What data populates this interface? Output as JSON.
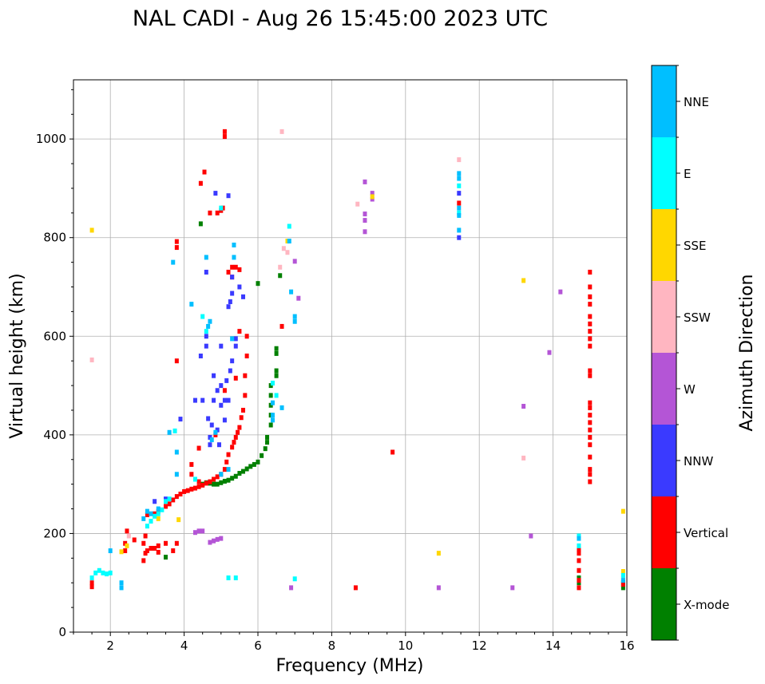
{
  "chart_data": {
    "type": "scatter",
    "title": "NAL CADI - Aug 26 15:45:00 2023 UTC",
    "xlabel": "Frequency (MHz)",
    "ylabel": "Virtual height (km)",
    "xlim": [
      1,
      16
    ],
    "ylim": [
      0,
      1120
    ],
    "xticks": [
      2,
      4,
      6,
      8,
      10,
      12,
      14,
      16
    ],
    "yticks": [
      0,
      200,
      400,
      600,
      800,
      1000
    ],
    "grid": true,
    "colorbar": {
      "label": "Azimuth Direction",
      "entries": [
        {
          "name": "X-mode",
          "color": "#008000"
        },
        {
          "name": "Vertical",
          "color": "#ff0000"
        },
        {
          "name": "NNW",
          "color": "#3a3aff"
        },
        {
          "name": "W",
          "color": "#b455d6"
        },
        {
          "name": "SSW",
          "color": "#ffb6c1"
        },
        {
          "name": "SSE",
          "color": "#ffd700"
        },
        {
          "name": "E",
          "color": "#00ffff"
        },
        {
          "name": "NNE",
          "color": "#00bfff"
        }
      ]
    },
    "series": [
      {
        "name": "X-mode",
        "points": [
          [
            4.5,
            300
          ],
          [
            4.6,
            303
          ],
          [
            4.7,
            302
          ],
          [
            4.8,
            300
          ],
          [
            4.9,
            300
          ],
          [
            5.0,
            303
          ],
          [
            5.1,
            306
          ],
          [
            5.2,
            308
          ],
          [
            5.3,
            312
          ],
          [
            5.4,
            316
          ],
          [
            5.5,
            322
          ],
          [
            5.6,
            326
          ],
          [
            5.7,
            331
          ],
          [
            5.8,
            336
          ],
          [
            5.9,
            340
          ],
          [
            6.0,
            345
          ],
          [
            6.1,
            358
          ],
          [
            6.2,
            372
          ],
          [
            6.25,
            385
          ],
          [
            6.25,
            395
          ],
          [
            6.35,
            420
          ],
          [
            6.35,
            440
          ],
          [
            6.35,
            460
          ],
          [
            6.35,
            480
          ],
          [
            6.35,
            500
          ],
          [
            6.5,
            520
          ],
          [
            6.5,
            530
          ],
          [
            6.5,
            565
          ],
          [
            6.5,
            575
          ],
          [
            6.6,
            723
          ],
          [
            4.45,
            828
          ],
          [
            6.0,
            707
          ],
          [
            14.7,
            100
          ],
          [
            14.7,
            110
          ],
          [
            15.9,
            90
          ],
          [
            15.9,
            100
          ],
          [
            3.5,
            152
          ]
        ]
      },
      {
        "name": "Vertical",
        "points": [
          [
            1.5,
            92
          ],
          [
            1.5,
            100
          ],
          [
            2.4,
            165
          ],
          [
            2.4,
            180
          ],
          [
            2.45,
            205
          ],
          [
            2.65,
            187
          ],
          [
            2.9,
            145
          ],
          [
            2.95,
            160
          ],
          [
            3.0,
            165
          ],
          [
            3.1,
            170
          ],
          [
            3.2,
            170
          ],
          [
            3.3,
            175
          ],
          [
            3.5,
            180
          ],
          [
            3.7,
            165
          ],
          [
            3.8,
            180
          ],
          [
            2.9,
            180
          ],
          [
            2.95,
            195
          ],
          [
            3.0,
            238
          ],
          [
            3.2,
            240
          ],
          [
            3.3,
            245
          ],
          [
            3.5,
            255
          ],
          [
            3.6,
            260
          ],
          [
            3.7,
            268
          ],
          [
            3.8,
            275
          ],
          [
            3.9,
            280
          ],
          [
            4.0,
            285
          ],
          [
            4.1,
            287
          ],
          [
            4.2,
            290
          ],
          [
            4.3,
            292
          ],
          [
            4.4,
            295
          ],
          [
            4.5,
            298
          ],
          [
            4.6,
            302
          ],
          [
            4.7,
            305
          ],
          [
            4.8,
            310
          ],
          [
            4.9,
            315
          ],
          [
            5.0,
            320
          ],
          [
            5.1,
            330
          ],
          [
            5.15,
            345
          ],
          [
            5.2,
            360
          ],
          [
            5.3,
            375
          ],
          [
            5.35,
            385
          ],
          [
            5.4,
            395
          ],
          [
            5.45,
            405
          ],
          [
            5.5,
            415
          ],
          [
            5.55,
            435
          ],
          [
            5.6,
            450
          ],
          [
            5.65,
            480
          ],
          [
            5.65,
            520
          ],
          [
            5.7,
            560
          ],
          [
            5.7,
            600
          ],
          [
            3.3,
            162
          ],
          [
            3.8,
            550
          ],
          [
            3.8,
            780
          ],
          [
            3.8,
            792
          ],
          [
            4.2,
            340
          ],
          [
            4.2,
            320
          ],
          [
            4.4,
            373
          ],
          [
            4.4,
            305
          ],
          [
            4.45,
            910
          ],
          [
            4.55,
            933
          ],
          [
            4.7,
            850
          ],
          [
            4.9,
            850
          ],
          [
            5.0,
            855
          ],
          [
            5.05,
            860
          ],
          [
            5.1,
            1005
          ],
          [
            5.1,
            1015
          ],
          [
            5.2,
            730
          ],
          [
            5.3,
            720
          ],
          [
            5.3,
            740
          ],
          [
            5.4,
            740
          ],
          [
            5.5,
            735
          ],
          [
            5.5,
            610
          ],
          [
            6.65,
            620
          ],
          [
            9.65,
            365
          ],
          [
            8.65,
            90
          ],
          [
            4.85,
            400
          ],
          [
            5.4,
            515
          ],
          [
            5.1,
            490
          ],
          [
            15.0,
            305
          ],
          [
            15.0,
            320
          ],
          [
            15.0,
            330
          ],
          [
            15.0,
            355
          ],
          [
            15.0,
            380
          ],
          [
            15.0,
            395
          ],
          [
            15.0,
            410
          ],
          [
            15.0,
            425
          ],
          [
            15.0,
            440
          ],
          [
            15.0,
            455
          ],
          [
            15.0,
            465
          ],
          [
            15.0,
            520
          ],
          [
            15.0,
            530
          ],
          [
            15.0,
            580
          ],
          [
            15.0,
            595
          ],
          [
            15.0,
            610
          ],
          [
            15.0,
            625
          ],
          [
            15.0,
            640
          ],
          [
            15.0,
            665
          ],
          [
            15.0,
            680
          ],
          [
            15.0,
            700
          ],
          [
            15.0,
            730
          ],
          [
            14.7,
            90
          ],
          [
            14.7,
            105
          ],
          [
            14.7,
            125
          ],
          [
            14.7,
            145
          ],
          [
            14.7,
            160
          ],
          [
            14.7,
            168
          ],
          [
            15.9,
            97
          ],
          [
            11.45,
            870
          ]
        ]
      },
      {
        "name": "NNW",
        "points": [
          [
            3.2,
            265
          ],
          [
            3.5,
            270
          ],
          [
            4.5,
            470
          ],
          [
            4.6,
            580
          ],
          [
            4.6,
            600
          ],
          [
            4.65,
            433
          ],
          [
            4.7,
            380
          ],
          [
            4.7,
            395
          ],
          [
            4.75,
            420
          ],
          [
            4.8,
            520
          ],
          [
            4.8,
            470
          ],
          [
            4.9,
            410
          ],
          [
            4.95,
            380
          ],
          [
            5.0,
            460
          ],
          [
            5.0,
            500
          ],
          [
            5.1,
            430
          ],
          [
            5.1,
            470
          ],
          [
            5.15,
            510
          ],
          [
            5.2,
            470
          ],
          [
            5.25,
            530
          ],
          [
            5.3,
            550
          ],
          [
            5.4,
            580
          ],
          [
            5.4,
            595
          ],
          [
            5.2,
            660
          ],
          [
            5.25,
            670
          ],
          [
            5.3,
            687
          ],
          [
            5.3,
            720
          ],
          [
            5.5,
            700
          ],
          [
            5.6,
            680
          ],
          [
            4.3,
            470
          ],
          [
            4.45,
            560
          ],
          [
            3.9,
            432
          ],
          [
            4.85,
            890
          ],
          [
            4.6,
            730
          ],
          [
            11.45,
            800
          ],
          [
            11.45,
            890
          ],
          [
            5.0,
            580
          ],
          [
            5.2,
            885
          ],
          [
            4.9,
            490
          ]
        ]
      },
      {
        "name": "W",
        "points": [
          [
            4.3,
            202
          ],
          [
            4.4,
            205
          ],
          [
            4.5,
            205
          ],
          [
            4.7,
            182
          ],
          [
            4.8,
            185
          ],
          [
            4.9,
            188
          ],
          [
            5.0,
            190
          ],
          [
            8.9,
            913
          ],
          [
            8.9,
            848
          ],
          [
            8.9,
            835
          ],
          [
            8.9,
            812
          ],
          [
            9.1,
            878
          ],
          [
            9.1,
            890
          ],
          [
            12.9,
            90
          ],
          [
            13.2,
            458
          ],
          [
            13.4,
            195
          ],
          [
            13.9,
            567
          ],
          [
            14.2,
            690
          ],
          [
            10.9,
            90
          ],
          [
            6.9,
            90
          ],
          [
            7.0,
            752
          ],
          [
            7.1,
            677
          ]
        ]
      },
      {
        "name": "SSW",
        "points": [
          [
            1.5,
            552
          ],
          [
            6.65,
            1015
          ],
          [
            6.7,
            778
          ],
          [
            6.6,
            740
          ],
          [
            6.8,
            770
          ],
          [
            8.7,
            868
          ],
          [
            13.2,
            353
          ],
          [
            15.9,
            110
          ],
          [
            11.45,
            958
          ],
          [
            2.5,
            195
          ]
        ]
      },
      {
        "name": "SSE",
        "points": [
          [
            1.5,
            815
          ],
          [
            3.3,
            230
          ],
          [
            3.85,
            228
          ],
          [
            2.3,
            163
          ],
          [
            10.9,
            160
          ],
          [
            13.2,
            713
          ],
          [
            15.9,
            245
          ],
          [
            15.9,
            123
          ],
          [
            9.1,
            883
          ],
          [
            6.8,
            793
          ],
          [
            2.45,
            175
          ]
        ]
      },
      {
        "name": "E",
        "points": [
          [
            1.5,
            110
          ],
          [
            1.6,
            120
          ],
          [
            1.7,
            125
          ],
          [
            1.8,
            120
          ],
          [
            1.9,
            118
          ],
          [
            2.0,
            120
          ],
          [
            3.0,
            215
          ],
          [
            3.1,
            225
          ],
          [
            3.2,
            235
          ],
          [
            3.3,
            240
          ],
          [
            3.4,
            248
          ],
          [
            3.5,
            265
          ],
          [
            3.6,
            270
          ],
          [
            4.3,
            310
          ],
          [
            4.5,
            640
          ],
          [
            4.6,
            610
          ],
          [
            5.0,
            860
          ],
          [
            5.2,
            110
          ],
          [
            5.4,
            110
          ],
          [
            7.0,
            108
          ],
          [
            6.85,
            823
          ],
          [
            6.4,
            505
          ],
          [
            6.5,
            480
          ],
          [
            14.7,
            175
          ],
          [
            14.7,
            195
          ],
          [
            15.9,
            115
          ],
          [
            11.45,
            905
          ],
          [
            11.45,
            850
          ],
          [
            3.75,
            408
          ]
        ]
      },
      {
        "name": "NNE",
        "points": [
          [
            2.3,
            90
          ],
          [
            2.3,
            100
          ],
          [
            2.0,
            165
          ],
          [
            2.9,
            230
          ],
          [
            3.0,
            245
          ],
          [
            3.1,
            240
          ],
          [
            3.3,
            250
          ],
          [
            3.6,
            405
          ],
          [
            3.8,
            365
          ],
          [
            3.8,
            320
          ],
          [
            4.2,
            665
          ],
          [
            3.7,
            750
          ],
          [
            4.6,
            760
          ],
          [
            4.65,
            620
          ],
          [
            4.7,
            630
          ],
          [
            4.75,
            390
          ],
          [
            4.85,
            405
          ],
          [
            5.0,
            320
          ],
          [
            5.2,
            330
          ],
          [
            5.3,
            595
          ],
          [
            5.35,
            760
          ],
          [
            5.35,
            785
          ],
          [
            6.4,
            465
          ],
          [
            6.4,
            430
          ],
          [
            6.4,
            440
          ],
          [
            6.65,
            455
          ],
          [
            6.9,
            690
          ],
          [
            7.0,
            630
          ],
          [
            7.0,
            640
          ],
          [
            6.85,
            793
          ],
          [
            11.45,
            920
          ],
          [
            11.45,
            930
          ],
          [
            11.45,
            860
          ],
          [
            11.45,
            845
          ],
          [
            11.45,
            815
          ],
          [
            14.7,
            190
          ],
          [
            15.9,
            105
          ]
        ]
      }
    ]
  }
}
